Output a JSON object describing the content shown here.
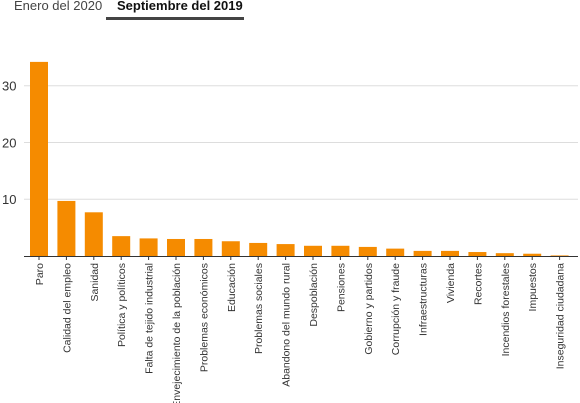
{
  "tabs": [
    {
      "label": "Enero del 2020",
      "active": false
    },
    {
      "label": "Septiembre del 2019",
      "active": true
    }
  ],
  "colors": {
    "bar": "#f58b00",
    "grid": "#dddddd",
    "axis": "#333333",
    "text": "#333333"
  },
  "chart_data": {
    "type": "bar",
    "title": "",
    "xlabel": "",
    "ylabel": "",
    "ylim": [
      0,
      37
    ],
    "yticks": [
      10,
      20,
      30
    ],
    "grid": true,
    "categories": [
      "Paro",
      "Calidad del empleo",
      "Sanidad",
      "Política y políticos",
      "Falta de tejido industrial",
      "Envejecimiento de la población",
      "Problemas económicos",
      "Educación",
      "Problemas sociales",
      "Abandono del mundo rural",
      "Despoblación",
      "Pensiones",
      "Gobierno y partidos",
      "Corrupción y fraude",
      "Infraestructuras",
      "Vivienda",
      "Recortes",
      "Incendios forestales",
      "Impuestos",
      "Inseguridad ciudadana"
    ],
    "values": [
      34.2,
      9.7,
      7.7,
      3.5,
      3.1,
      3.0,
      3.0,
      2.6,
      2.3,
      2.1,
      1.8,
      1.8,
      1.6,
      1.3,
      0.9,
      0.9,
      0.7,
      0.5,
      0.4,
      0.1
    ]
  }
}
